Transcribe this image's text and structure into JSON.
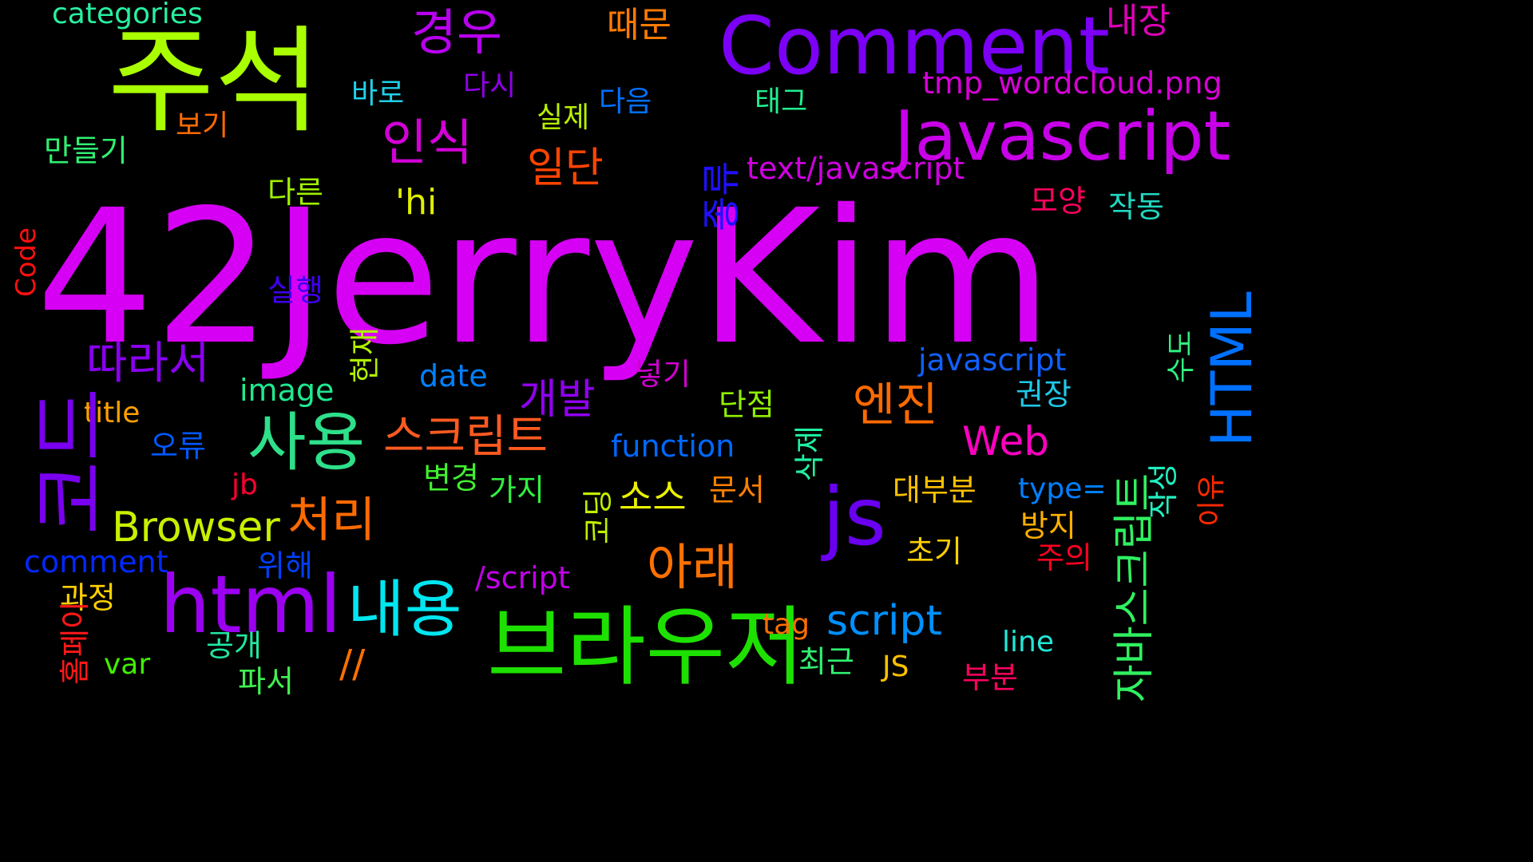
{
  "wordcloud": {
    "background": "#000000",
    "words": [
      {
        "text": "42JerryKim",
        "color": "#d600f5"
      },
      {
        "text": "주석",
        "color": "#aaff00"
      },
      {
        "text": "Comment",
        "color": "#7b00f5"
      },
      {
        "text": "Javascript",
        "color": "#c800e8"
      },
      {
        "text": "브라우저",
        "color": "#1ee000"
      },
      {
        "text": "html",
        "color": "#9b00f0"
      },
      {
        "text": "js",
        "color": "#6a00f0"
      },
      {
        "text": "사용",
        "color": "#2ee08a"
      },
      {
        "text": "내용",
        "color": "#00e6f0"
      },
      {
        "text": "경우",
        "color": "#b800f0"
      },
      {
        "text": "인식",
        "color": "#d400d8"
      },
      {
        "text": "HTML",
        "color": "#0070ff"
      },
      {
        "text": "엔진",
        "color": "#ff6a00"
      },
      {
        "text": "아래",
        "color": "#ff7000"
      },
      {
        "text": "스크립트",
        "color": "#ff5a20"
      },
      {
        "text": "처리",
        "color": "#ff6a00"
      },
      {
        "text": "따라서",
        "color": "#8a00f0"
      },
      {
        "text": "Browser",
        "color": "#c8f000"
      },
      {
        "text": "script",
        "color": "#0090ff"
      },
      {
        "text": "Web",
        "color": "#ff00c0"
      },
      {
        "text": "일단",
        "color": "#ff4400"
      },
      {
        "text": "개발",
        "color": "#9000f0"
      },
      {
        "text": "소스",
        "color": "#e8f000"
      },
      {
        "text": "때문",
        "color": "#ff7a00"
      },
      {
        "text": "내장",
        "color": "#e000b8"
      },
      {
        "text": "categories",
        "color": "#28f0a0"
      },
      {
        "text": "tmp_wordcloud.png",
        "color": "#d800d8"
      },
      {
        "text": "text/javascript",
        "color": "#d000e0"
      },
      {
        "text": "javascript",
        "color": "#1060ff"
      },
      {
        "text": "function",
        "color": "#0068ff"
      },
      {
        "text": "'hi",
        "color": "#e0f000"
      },
      {
        "text": "image",
        "color": "#20e890"
      },
      {
        "text": "date",
        "color": "#0080ff"
      },
      {
        "text": "comment",
        "color": "#0028ff"
      },
      {
        "text": "/script",
        "color": "#c000e8"
      },
      {
        "text": "title",
        "color": "#ffa000"
      },
      {
        "text": "//",
        "color": "#ff7000"
      },
      {
        "text": "tag",
        "color": "#ff7000"
      },
      {
        "text": "line",
        "color": "#20e8d8"
      },
      {
        "text": "type=",
        "color": "#0080ff"
      },
      {
        "text": "jb",
        "color": "#ff0030"
      },
      {
        "text": "var",
        "color": "#40f000"
      },
      {
        "text": "JS",
        "color": "#ffc000"
      },
      {
        "text": "다시",
        "color": "#9000e8"
      },
      {
        "text": "바로",
        "color": "#20d0e8"
      },
      {
        "text": "다음",
        "color": "#0070ff"
      },
      {
        "text": "실제",
        "color": "#b8f000"
      },
      {
        "text": "태그",
        "color": "#20f090"
      },
      {
        "text": "보기",
        "color": "#ff6a00"
      },
      {
        "text": "만들기",
        "color": "#30f070"
      },
      {
        "text": "다른",
        "color": "#a0f000"
      },
      {
        "text": "모양",
        "color": "#ff0060"
      },
      {
        "text": "작동",
        "color": "#20d8c0"
      },
      {
        "text": "실행",
        "color": "#4000f0"
      },
      {
        "text": "넣기",
        "color": "#d000d0"
      },
      {
        "text": "단점",
        "color": "#90f000"
      },
      {
        "text": "권장",
        "color": "#20c8e8"
      },
      {
        "text": "오류",
        "color": "#0058ff"
      },
      {
        "text": "변경",
        "color": "#40f030"
      },
      {
        "text": "가지",
        "color": "#30f040"
      },
      {
        "text": "문서",
        "color": "#ff8000"
      },
      {
        "text": "대부분",
        "color": "#ffc000"
      },
      {
        "text": "방지",
        "color": "#ffb000"
      },
      {
        "text": "주의",
        "color": "#ff0020"
      },
      {
        "text": "초기",
        "color": "#ffd000"
      },
      {
        "text": "위해",
        "color": "#0040ff"
      },
      {
        "text": "과정",
        "color": "#ffd000"
      },
      {
        "text": "공개",
        "color": "#20e8a0"
      },
      {
        "text": "최근",
        "color": "#30f070"
      },
      {
        "text": "부분",
        "color": "#ff0060"
      },
      {
        "text": "파서",
        "color": "#40f050"
      },
      {
        "text": "코드",
        "color": "#7a00f0"
      },
      {
        "text": "종류",
        "color": "#2010ff"
      },
      {
        "text": "자바스크립트",
        "color": "#30f060"
      },
      {
        "text": "작성",
        "color": "#20f0c0"
      },
      {
        "text": "수도",
        "color": "#30f080"
      },
      {
        "text": "이유",
        "color": "#ff2a00"
      },
      {
        "text": "Code",
        "color": "#ff1010"
      },
      {
        "text": "현재",
        "color": "#b0f000"
      },
      {
        "text": "삭제",
        "color": "#20f0a0"
      },
      {
        "text": "홈페이",
        "color": "#ff1818"
      },
      {
        "text": "코딩",
        "color": "#c0f000"
      }
    ]
  }
}
